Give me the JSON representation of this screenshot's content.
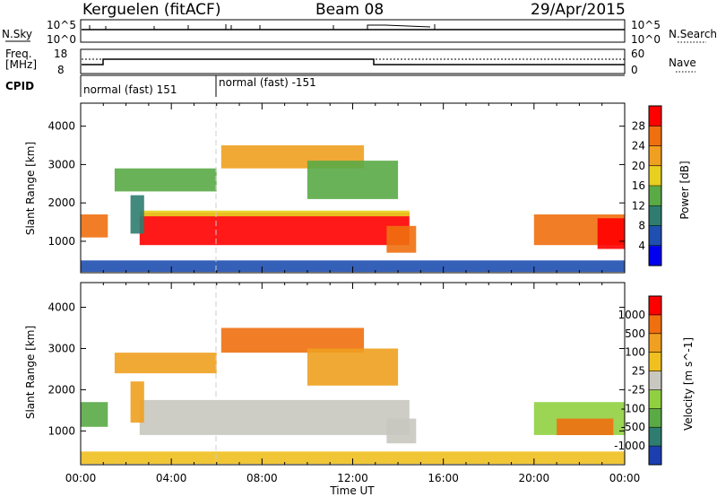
{
  "header": {
    "station": "Kerguelen (fitACF)",
    "beam": "Beam 08",
    "date": "29/Apr/2015"
  },
  "nsky": {
    "left_label": "N.Sky",
    "right_label": "N.Search",
    "left_ticks": [
      "10^5",
      "10^0"
    ],
    "right_ticks": [
      "10^5",
      "10^0"
    ]
  },
  "freq": {
    "left_label_1": "Freq.",
    "left_label_2": "[MHz]",
    "right_label": "Nave",
    "left_ticks": [
      "18",
      "8"
    ],
    "right_ticks": [
      "60",
      "0"
    ]
  },
  "cpid": {
    "label": "CPID",
    "segments": [
      {
        "text": "normal (fast) 151",
        "start_hour": 0
      },
      {
        "text": "normal (fast) -151",
        "start_hour": 6
      }
    ]
  },
  "chart_data": [
    {
      "type": "heatmap",
      "name": "power",
      "ylabel": "Slant Range [km]",
      "xlabel": "Time UT",
      "x_ticks": [
        "00:00",
        "04:00",
        "08:00",
        "12:00",
        "16:00",
        "20:00",
        "00:00"
      ],
      "x_range_hours": [
        0,
        24
      ],
      "y_ticks": [
        "1000",
        "2000",
        "3000",
        "4000"
      ],
      "y_range_km": [
        180,
        4600
      ],
      "colorbar_label": "Power [dB]",
      "colorbar_ticks": [
        "4",
        "8",
        "12",
        "16",
        "20",
        "24",
        "28"
      ],
      "colors": [
        "#0000ee",
        "#1f4fb0",
        "#2e7d70",
        "#5aaa46",
        "#e8d020",
        "#f0a020",
        "#f07010",
        "#ff0000"
      ],
      "regions": [
        {
          "t0": 0.0,
          "t1": 1.2,
          "r0": 1100,
          "r1": 1700,
          "c": 6
        },
        {
          "t0": 2.6,
          "t1": 14.5,
          "r0": 900,
          "r1": 1750,
          "c": 7
        },
        {
          "t0": 2.6,
          "t1": 14.5,
          "r0": 1650,
          "r1": 1800,
          "c": 4
        },
        {
          "t0": 2.2,
          "t1": 2.8,
          "r0": 1200,
          "r1": 2200,
          "c": 2
        },
        {
          "t0": 1.5,
          "t1": 6.0,
          "r0": 2300,
          "r1": 2900,
          "c": 3
        },
        {
          "t0": 6.2,
          "t1": 12.5,
          "r0": 2900,
          "r1": 3500,
          "c": 5
        },
        {
          "t0": 10.0,
          "t1": 14.0,
          "r0": 2100,
          "r1": 3100,
          "c": 3
        },
        {
          "t0": 13.5,
          "t1": 14.8,
          "r0": 700,
          "r1": 1400,
          "c": 6
        },
        {
          "t0": 20.0,
          "t1": 24.0,
          "r0": 900,
          "r1": 1700,
          "c": 6
        },
        {
          "t0": 22.8,
          "t1": 24.0,
          "r0": 800,
          "r1": 1600,
          "c": 7
        },
        {
          "t0": 0.0,
          "t1": 24.0,
          "r0": 200,
          "r1": 500,
          "c": 1
        }
      ]
    },
    {
      "type": "heatmap",
      "name": "velocity",
      "ylabel": "Slant Range [km]",
      "xlabel": "Time UT",
      "x_ticks": [
        "00:00",
        "04:00",
        "08:00",
        "12:00",
        "16:00",
        "20:00",
        "00:00"
      ],
      "x_range_hours": [
        0,
        24
      ],
      "y_ticks": [
        "1000",
        "2000",
        "3000",
        "4000"
      ],
      "y_range_km": [
        180,
        4600
      ],
      "colorbar_label": "Velocity [m s^-1]",
      "colorbar_ticks": [
        "1000",
        "500",
        "100",
        "25",
        "-25",
        "-100",
        "-500",
        "-1000"
      ],
      "colors": [
        "#1b3fb0",
        "#2e7d70",
        "#5aaa46",
        "#90d040",
        "#c8c8c0",
        "#f0c020",
        "#f0a020",
        "#f07010",
        "#ff0000"
      ],
      "regions": [
        {
          "t0": 0.0,
          "t1": 1.2,
          "r0": 1100,
          "r1": 1700,
          "c": 2
        },
        {
          "t0": 2.6,
          "t1": 14.5,
          "r0": 900,
          "r1": 1750,
          "c": 4
        },
        {
          "t0": 2.2,
          "t1": 2.8,
          "r0": 1200,
          "r1": 2200,
          "c": 6
        },
        {
          "t0": 1.5,
          "t1": 6.0,
          "r0": 2400,
          "r1": 2900,
          "c": 6
        },
        {
          "t0": 6.2,
          "t1": 12.5,
          "r0": 2900,
          "r1": 3500,
          "c": 7
        },
        {
          "t0": 10.0,
          "t1": 14.0,
          "r0": 2100,
          "r1": 3000,
          "c": 6
        },
        {
          "t0": 13.5,
          "t1": 14.8,
          "r0": 700,
          "r1": 1300,
          "c": 4
        },
        {
          "t0": 20.0,
          "t1": 24.0,
          "r0": 900,
          "r1": 1700,
          "c": 3
        },
        {
          "t0": 21.0,
          "t1": 23.5,
          "r0": 900,
          "r1": 1300,
          "c": 7
        },
        {
          "t0": 0.0,
          "t1": 24.0,
          "r0": 200,
          "r1": 500,
          "c": 5
        }
      ]
    }
  ]
}
